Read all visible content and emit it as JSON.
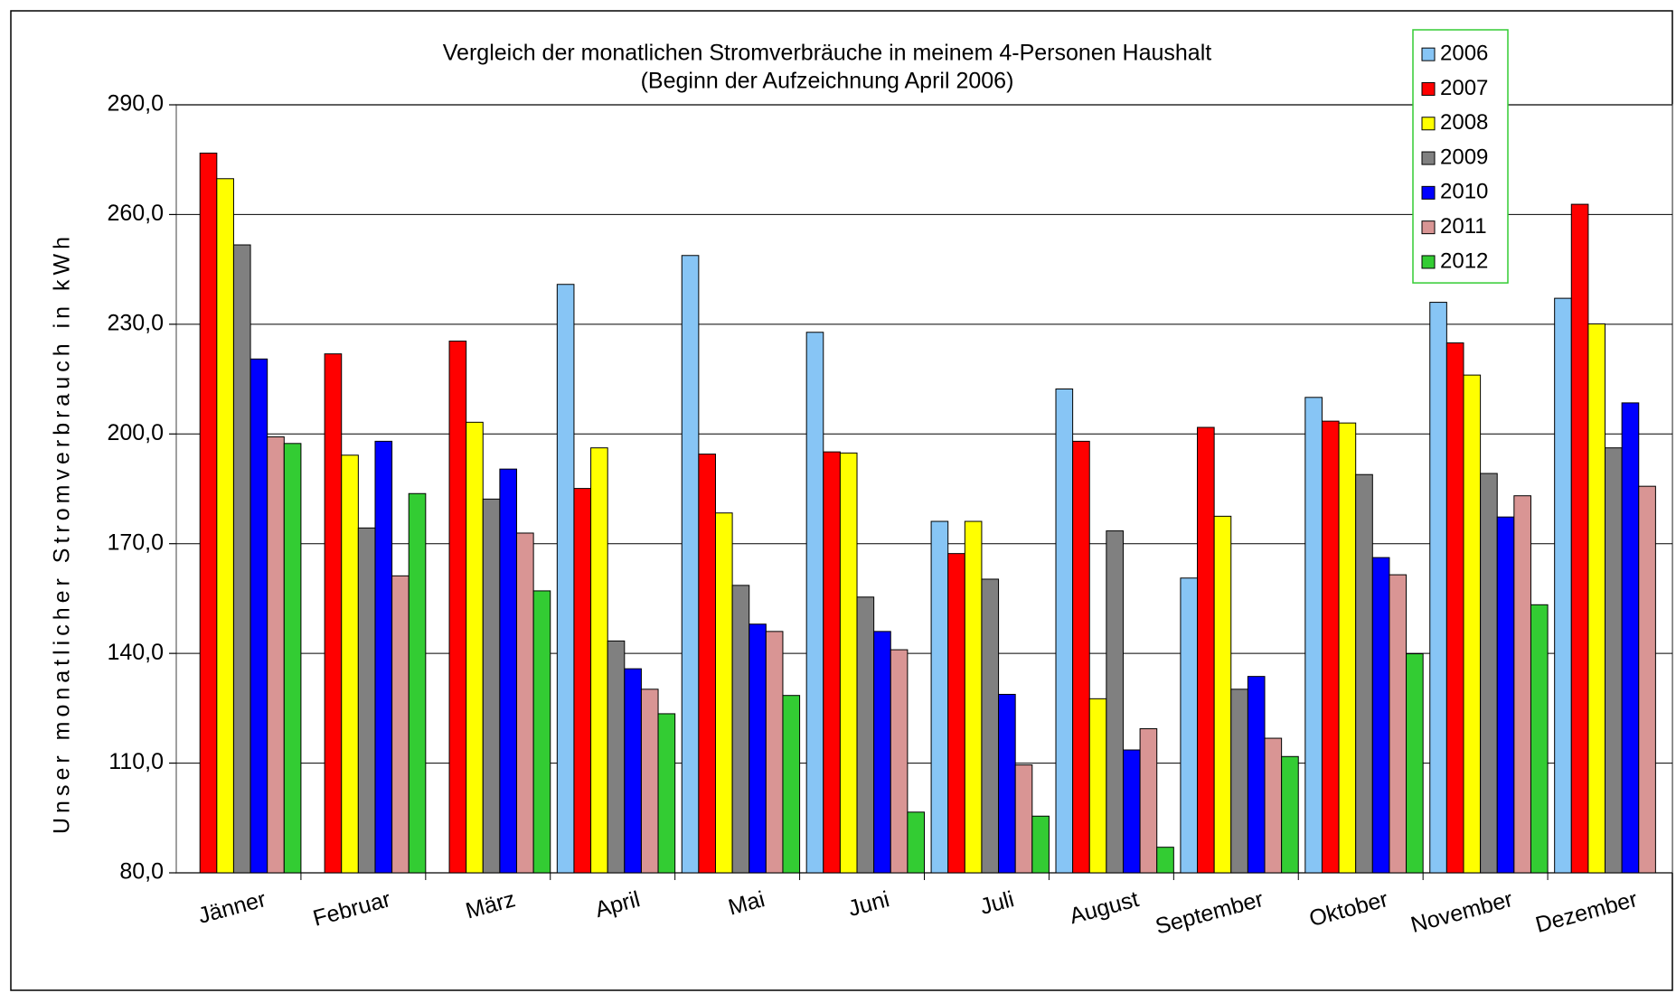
{
  "chart_data": {
    "type": "bar",
    "title": "Vergleich der monatlichen Stromverbräuche in meinem  4-Personen Haushalt",
    "subtitle": "(Beginn der Aufzeichnung April 2006)",
    "y_label": "Unser monatlicher Stromverbrauch in kWh",
    "categories": [
      "Jänner",
      "Februar",
      "März",
      "April",
      "Mai",
      "Juni",
      "Juli",
      "August",
      "September",
      "Oktober",
      "November",
      "Dezember"
    ],
    "series": [
      {
        "name": "2006",
        "color": "#87c5f5",
        "values": [
          null,
          null,
          null,
          240.9,
          248.8,
          227.8,
          176.1,
          212.3,
          160.6,
          210,
          236,
          237.1
        ]
      },
      {
        "name": "2007",
        "color": "#ff0000",
        "values": [
          276.8,
          221.9,
          225.4,
          185.1,
          194.5,
          195.1,
          167.3,
          198,
          201.8,
          203.5,
          224.9,
          262.8
        ]
      },
      {
        "name": "2008",
        "color": "#ffff00",
        "values": [
          269.8,
          194.2,
          203.2,
          196.2,
          178.4,
          194.8,
          176.1,
          127.6,
          177.5,
          203,
          216.1,
          230.1
        ]
      },
      {
        "name": "2009",
        "color": "#808080",
        "values": [
          251.7,
          174.3,
          182.2,
          143.4,
          158.6,
          155.4,
          160.3,
          173.5,
          130.2,
          188.9,
          189.2,
          196.2
        ]
      },
      {
        "name": "2010",
        "color": "#0000ff",
        "values": [
          220.5,
          198,
          190.4,
          135.8,
          148,
          146,
          128.8,
          113.6,
          133.7,
          166.2,
          177.3,
          208.5
        ]
      },
      {
        "name": "2011",
        "color": "#d99594",
        "values": [
          199.2,
          161.2,
          172.9,
          130.2,
          146,
          141,
          109.5,
          119.4,
          116.8,
          161.5,
          183.1,
          185.7
        ]
      },
      {
        "name": "2012",
        "color": "#33cc33",
        "values": [
          197.4,
          183.7,
          157.1,
          123.5,
          128.5,
          96.6,
          95.5,
          87,
          111.8,
          139.9,
          153.3,
          null
        ]
      }
    ],
    "ylim": [
      80,
      290
    ],
    "yticks": [
      {
        "value": 80,
        "label": "80,0"
      },
      {
        "value": 110,
        "label": "110,0"
      },
      {
        "value": 140,
        "label": "140,0"
      },
      {
        "value": 170,
        "label": "170,0"
      },
      {
        "value": 200,
        "label": "200,0"
      },
      {
        "value": 230,
        "label": "230,0"
      },
      {
        "value": 260,
        "label": "260,0"
      },
      {
        "value": 290,
        "label": "290,0"
      }
    ],
    "grid": true,
    "legend": "top-right"
  }
}
